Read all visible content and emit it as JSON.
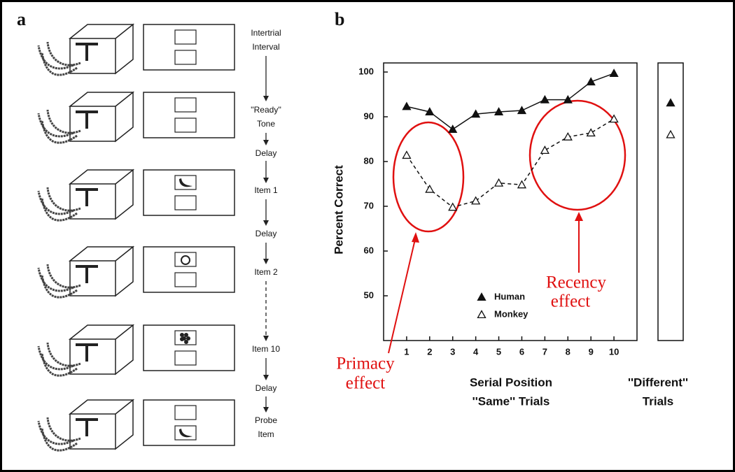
{
  "panel_a": {
    "label": "a",
    "flow": [
      [
        "Intertrial",
        "Interval"
      ],
      [
        "''Ready''",
        "Tone"
      ],
      [
        "Delay"
      ],
      [
        "Item 1"
      ],
      [
        "Delay"
      ],
      [
        "Item 2"
      ],
      [
        "Item 10"
      ],
      [
        "Delay"
      ],
      [
        "Probe",
        "Item"
      ]
    ]
  },
  "chart_data": {
    "type": "line",
    "panel_label": "b",
    "y_label": "Percent Correct",
    "x_label": [
      "Serial Position",
      "''Same'' Trials"
    ],
    "different_label": [
      "''Different''",
      "Trials"
    ],
    "x": [
      1,
      2,
      3,
      4,
      5,
      6,
      7,
      8,
      9,
      10
    ],
    "xlim": [
      0,
      11
    ],
    "xticks": [
      1,
      2,
      3,
      4,
      5,
      6,
      7,
      8,
      9,
      10
    ],
    "ylim": [
      40,
      100
    ],
    "yticks": [
      50,
      60,
      70,
      80,
      90,
      100
    ],
    "series": [
      {
        "name": "Human",
        "color": "#111111",
        "marker": "filled",
        "linestyle": "solid",
        "values": [
          92.3,
          91.1,
          87.2,
          90.6,
          91.1,
          91.4,
          93.8,
          93.8,
          97.8,
          99.7
        ],
        "different_trials": 93.1
      },
      {
        "name": "Monkey",
        "color": "#111111",
        "marker": "open",
        "linestyle": "dashed",
        "values": [
          81.4,
          73.8,
          69.8,
          71.2,
          75.2,
          74.8,
          82.5,
          85.5,
          86.4,
          89.5
        ],
        "different_trials": 86.0
      }
    ],
    "annotations": [
      [
        "Primacy",
        "effect"
      ],
      [
        "Recency",
        "effect"
      ]
    ]
  }
}
